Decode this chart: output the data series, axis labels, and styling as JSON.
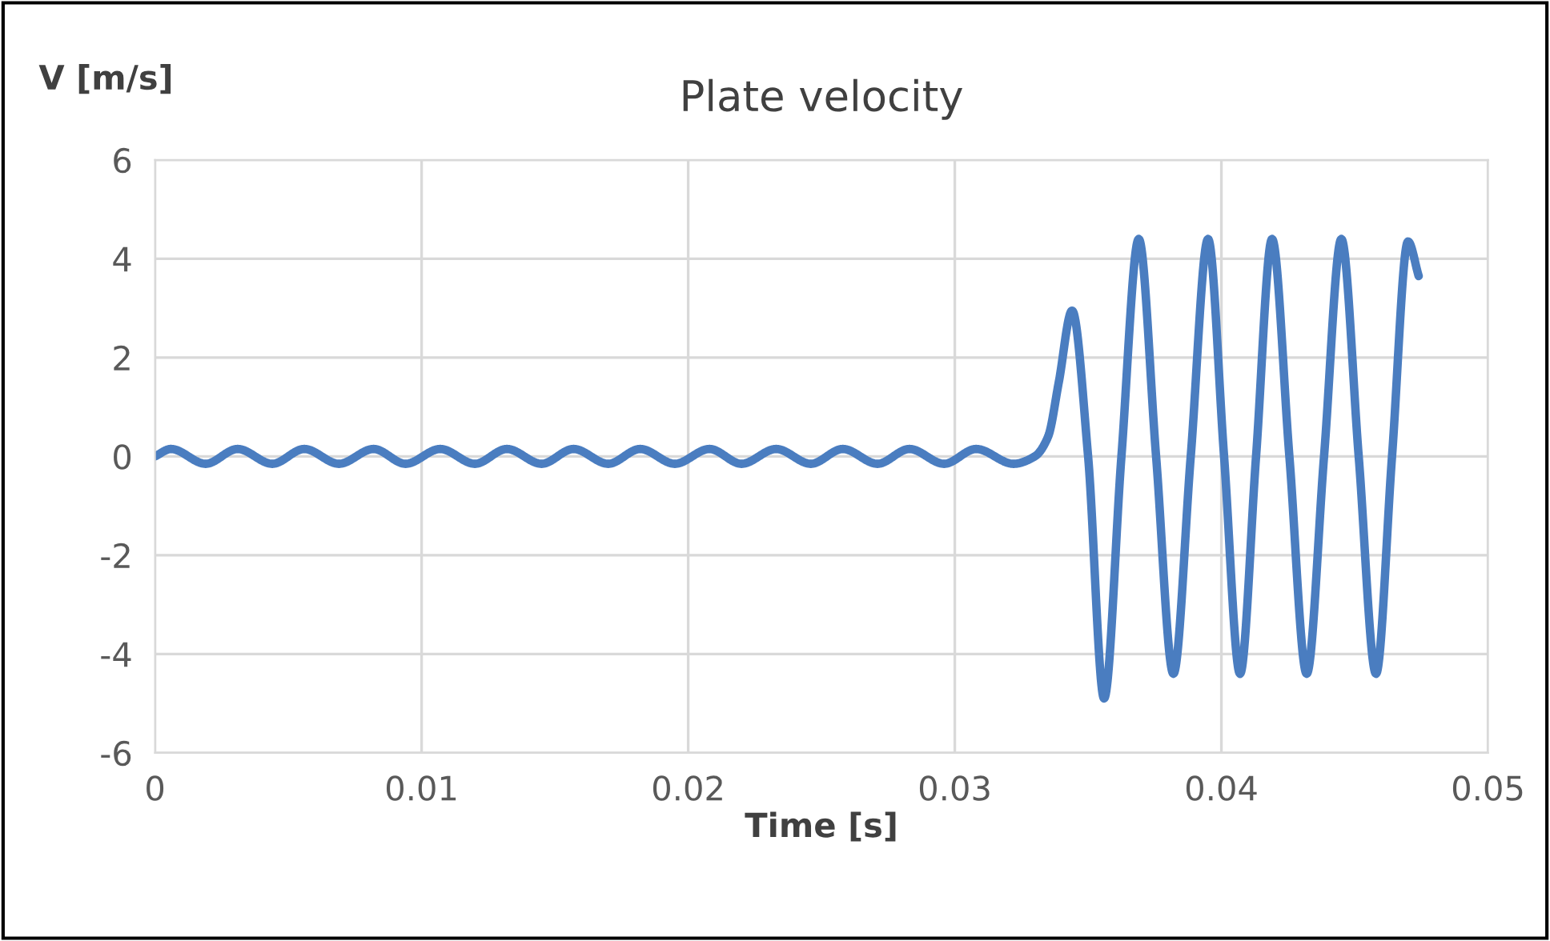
{
  "chart_data": {
    "type": "line",
    "title": "Plate velocity",
    "xlabel": "Time [s]",
    "ylabel": "V [m/s]",
    "x": [
      0,
      0.0006,
      0.0019,
      0.0031,
      0.0044,
      0.0056,
      0.0069,
      0.0082,
      0.0094,
      0.0107,
      0.012,
      0.0132,
      0.0145,
      0.0157,
      0.017,
      0.0182,
      0.0195,
      0.0208,
      0.022,
      0.0233,
      0.0246,
      0.0258,
      0.0271,
      0.0283,
      0.0296,
      0.0308,
      0.0322,
      0.033,
      0.0335,
      0.0339,
      0.0344,
      0.035,
      0.0356,
      0.03625,
      0.0369,
      0.03755,
      0.0382,
      0.03885,
      0.0395,
      0.0401,
      0.0407,
      0.0413,
      0.0419,
      0.04255,
      0.0432,
      0.04385,
      0.0445,
      0.04515,
      0.0458,
      0.0464,
      0.047,
      0.0474
    ],
    "series": [
      {
        "color": "#4a7dc0",
        "values": [
          0,
          0.15,
          -0.15,
          0.15,
          -0.15,
          0.15,
          -0.15,
          0.15,
          -0.15,
          0.15,
          -0.15,
          0.15,
          -0.15,
          0.15,
          -0.15,
          0.15,
          -0.15,
          0.15,
          -0.15,
          0.15,
          -0.15,
          0.15,
          -0.15,
          0.15,
          -0.15,
          0.15,
          -0.15,
          0,
          0.4,
          1.5,
          2.95,
          0,
          -4.9,
          0,
          4.4,
          0,
          -4.4,
          0,
          4.4,
          0,
          -4.4,
          0,
          4.4,
          0,
          -4.4,
          0,
          4.4,
          0,
          -4.4,
          0,
          4.35,
          3.65
        ]
      }
    ],
    "xlim": [
      0,
      0.05
    ],
    "xticks": [
      0,
      0.01,
      0.02,
      0.03,
      0.04,
      0.05
    ],
    "ylim": [
      -6,
      6
    ],
    "yticks": [
      -6,
      -4,
      -2,
      0,
      2,
      4,
      6
    ],
    "grid": true,
    "marker": "none",
    "line_style": "solid"
  }
}
